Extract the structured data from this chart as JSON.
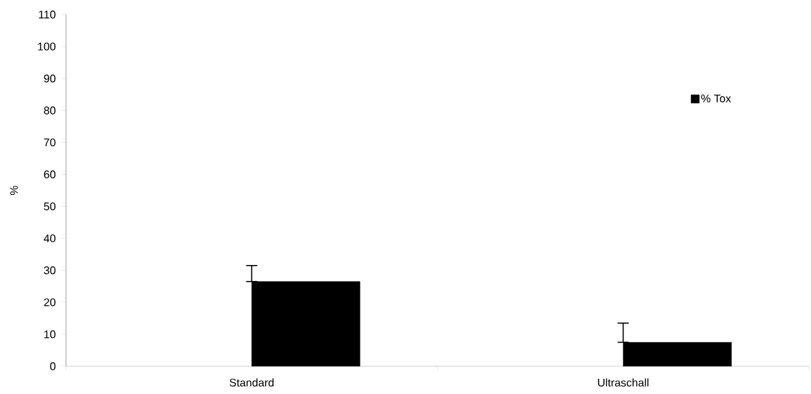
{
  "chart_data": {
    "type": "bar",
    "ylabel": "%",
    "categories": [
      "Standard",
      "Ultraschall"
    ],
    "series": [
      {
        "name": "% Tox",
        "color": "#000000",
        "values": [
          26.5,
          7.5
        ],
        "errors": [
          [
            26.5,
            31.5
          ],
          [
            7.5,
            13.5
          ]
        ]
      }
    ],
    "ylim": [
      0,
      110
    ],
    "yticks": [
      0,
      10,
      20,
      30,
      40,
      50,
      60,
      70,
      80,
      90,
      100,
      110
    ],
    "legend": "top right"
  }
}
